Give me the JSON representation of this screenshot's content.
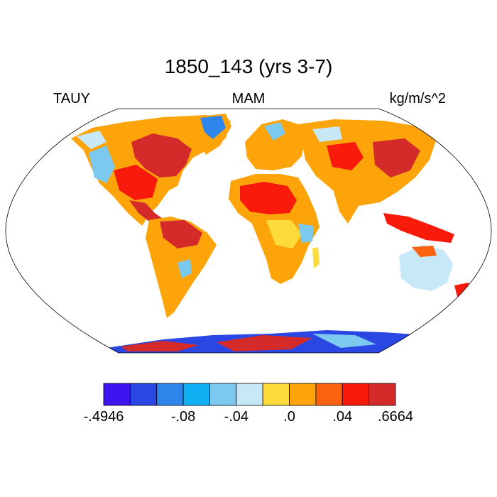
{
  "figure": {
    "title": "1850_143 (yrs 3-7)",
    "left_label": "TAUY",
    "center_label": "MAM",
    "right_label": "kg/m/s^2"
  },
  "colorbar": {
    "colors": [
      "#3c15f0",
      "#2b47e3",
      "#2e86ed",
      "#10b0f5",
      "#7bc9ef",
      "#c6e8f7",
      "#fddb3a",
      "#fca40a",
      "#fb6210",
      "#f81a0b",
      "#d42a2a"
    ],
    "labels": [
      {
        "text": "-.4946",
        "boundary": 0
      },
      {
        "text": "-.08",
        "boundary": 3
      },
      {
        "text": "-.04",
        "boundary": 5
      },
      {
        "text": ".0",
        "boundary": 7
      },
      {
        "text": ".04",
        "boundary": 9
      },
      {
        "text": ".6664",
        "boundary": 11
      }
    ]
  }
}
